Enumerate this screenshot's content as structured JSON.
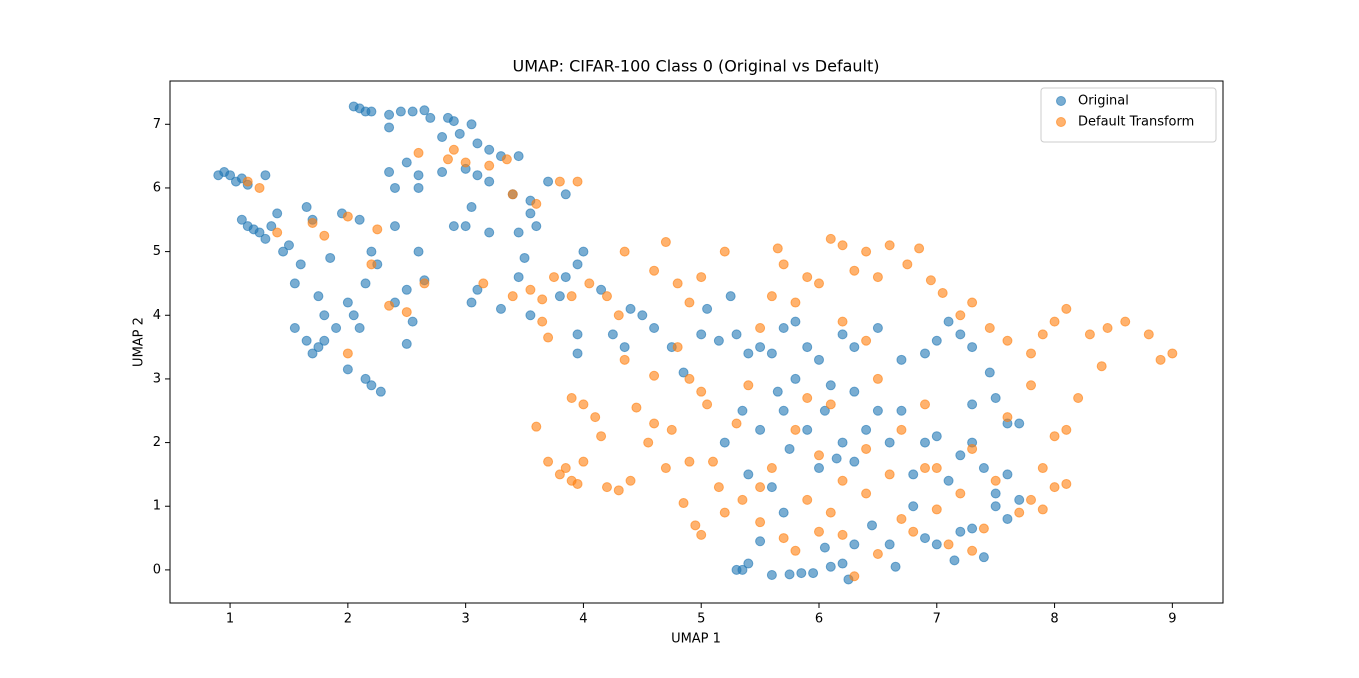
{
  "chart_data": {
    "type": "scatter",
    "title": "UMAP: CIFAR-100 Class 0 (Original vs Default)",
    "x_label": "UMAP 1",
    "y_label": "UMAP 2",
    "xlim": [
      0.49,
      9.43
    ],
    "ylim": [
      -0.52,
      7.68
    ],
    "xticks": [
      1,
      2,
      3,
      4,
      5,
      6,
      7,
      8,
      9
    ],
    "yticks": [
      0,
      1,
      2,
      3,
      4,
      5,
      6,
      7
    ],
    "legend": "upper right",
    "grid": false,
    "series": [
      {
        "name": "Original",
        "color": "#1f77b4",
        "x": [
          0.9,
          0.95,
          1.0,
          1.05,
          1.1,
          1.15,
          1.3,
          1.1,
          1.15,
          1.2,
          1.25,
          1.3,
          1.35,
          1.4,
          1.45,
          1.5,
          1.55,
          1.6,
          1.65,
          1.7,
          1.75,
          1.8,
          1.85,
          1.9,
          1.95,
          2.0,
          2.05,
          2.1,
          2.15,
          2.2,
          2.25,
          1.55,
          1.65,
          1.7,
          1.75,
          1.8,
          2.0,
          2.15,
          2.2,
          2.28,
          2.4,
          2.5,
          2.55,
          2.65,
          2.6,
          2.4,
          2.1,
          2.5,
          2.05,
          2.1,
          2.15,
          2.2,
          2.35,
          2.45,
          2.55,
          2.65,
          2.7,
          2.85,
          2.9,
          3.05,
          2.35,
          2.8,
          2.95,
          3.1,
          3.2,
          3.3,
          3.45,
          2.5,
          2.35,
          2.6,
          2.8,
          3.0,
          3.1,
          3.2,
          3.4,
          3.55,
          3.05,
          3.0,
          2.9,
          3.2,
          3.45,
          3.55,
          3.6,
          3.85,
          3.7,
          2.4,
          2.6,
          3.05,
          3.1,
          3.3,
          3.45,
          3.5,
          3.55,
          3.8,
          3.85,
          3.95,
          4.0,
          3.95,
          3.95,
          4.15,
          4.25,
          4.35,
          4.4,
          4.5,
          4.6,
          4.75,
          4.85,
          5.0,
          5.05,
          5.15,
          5.25,
          5.3,
          5.3,
          5.35,
          5.4,
          5.5,
          5.6,
          5.7,
          5.75,
          5.85,
          5.95,
          6.05,
          6.1,
          6.2,
          6.25,
          6.3,
          6.45,
          6.6,
          6.65,
          6.8,
          6.9,
          7.0,
          7.15,
          7.2,
          7.3,
          7.4,
          7.5,
          7.6,
          7.7,
          5.2,
          5.35,
          5.4,
          5.5,
          5.6,
          5.7,
          5.75,
          5.8,
          5.9,
          6.0,
          6.05,
          6.15,
          6.2,
          6.3,
          6.4,
          6.5,
          6.6,
          6.7,
          6.8,
          6.9,
          7.0,
          7.1,
          7.2,
          7.3,
          7.4,
          7.5,
          7.6,
          7.7,
          5.4,
          5.5,
          5.6,
          5.7,
          5.8,
          5.9,
          6.0,
          6.1,
          6.2,
          6.3,
          6.5,
          6.7,
          6.9,
          7.0,
          7.1,
          7.2,
          7.3,
          7.45,
          7.3,
          7.6,
          7.5,
          6.3,
          5.65
        ],
        "values": [
          6.2,
          6.25,
          6.2,
          6.1,
          6.15,
          6.05,
          6.2,
          5.5,
          5.4,
          5.35,
          5.3,
          5.2,
          5.4,
          5.6,
          5.0,
          5.1,
          4.5,
          4.8,
          5.7,
          5.5,
          4.3,
          4.0,
          4.9,
          3.8,
          5.6,
          4.2,
          4.0,
          3.8,
          4.5,
          5.0,
          4.8,
          3.8,
          3.6,
          3.4,
          3.5,
          3.6,
          3.15,
          3.0,
          2.9,
          2.8,
          4.2,
          4.4,
          3.9,
          4.55,
          5.0,
          5.4,
          5.5,
          3.55,
          7.28,
          7.25,
          7.2,
          7.2,
          7.15,
          7.2,
          7.2,
          7.22,
          7.1,
          7.1,
          7.05,
          7.0,
          6.95,
          6.8,
          6.85,
          6.7,
          6.6,
          6.5,
          6.5,
          6.4,
          6.25,
          6.2,
          6.25,
          6.3,
          6.2,
          6.1,
          5.9,
          5.8,
          5.7,
          5.4,
          5.4,
          5.3,
          5.3,
          5.6,
          5.4,
          5.9,
          6.1,
          6.0,
          6.0,
          4.2,
          4.4,
          4.1,
          4.6,
          4.9,
          4.0,
          4.3,
          4.6,
          4.8,
          5.0,
          3.7,
          3.4,
          4.4,
          3.7,
          3.5,
          4.1,
          4.0,
          3.8,
          3.5,
          3.1,
          3.7,
          4.1,
          3.6,
          4.3,
          3.7,
          0.0,
          0.0,
          0.1,
          0.45,
          -0.08,
          0.9,
          -0.07,
          -0.05,
          -0.05,
          0.35,
          0.05,
          0.1,
          -0.15,
          0.4,
          0.7,
          0.4,
          0.05,
          1.0,
          0.5,
          0.4,
          0.15,
          0.6,
          0.65,
          0.2,
          1.2,
          0.8,
          1.1,
          2.0,
          2.5,
          1.5,
          2.2,
          1.3,
          2.5,
          1.9,
          3.0,
          2.2,
          1.6,
          2.5,
          1.75,
          2.0,
          1.7,
          2.2,
          2.5,
          2.0,
          2.5,
          1.5,
          2.0,
          2.1,
          1.4,
          1.8,
          2.0,
          1.6,
          1.0,
          1.5,
          2.3,
          3.4,
          3.5,
          3.4,
          3.8,
          3.9,
          3.5,
          3.3,
          2.9,
          3.7,
          3.5,
          3.8,
          3.3,
          3.4,
          3.6,
          3.9,
          3.7,
          3.5,
          3.1,
          2.6,
          2.3,
          2.7,
          2.8,
          2.8
        ]
      },
      {
        "name": "Default Transform",
        "color": "#ff7f0e",
        "x": [
          1.25,
          1.15,
          1.4,
          2.0,
          1.8,
          2.25,
          2.2,
          1.7,
          2.0,
          2.35,
          2.5,
          2.65,
          2.6,
          2.85,
          2.9,
          3.0,
          3.2,
          3.35,
          3.4,
          3.6,
          3.8,
          3.95,
          3.15,
          3.4,
          3.55,
          3.65,
          3.75,
          3.65,
          3.7,
          3.9,
          4.05,
          4.2,
          4.3,
          4.35,
          4.6,
          4.7,
          4.8,
          4.9,
          5.0,
          5.2,
          3.6,
          3.7,
          3.8,
          3.85,
          3.9,
          3.95,
          4.0,
          3.9,
          4.0,
          4.1,
          4.15,
          4.2,
          4.3,
          4.4,
          4.45,
          4.55,
          4.6,
          4.7,
          4.75,
          4.85,
          4.9,
          4.95,
          5.0,
          5.05,
          5.1,
          5.15,
          4.8,
          4.9,
          5.0,
          4.6,
          4.35,
          5.2,
          5.35,
          5.5,
          5.6,
          5.7,
          5.8,
          5.9,
          6.0,
          6.1,
          6.2,
          6.3,
          6.4,
          6.5,
          6.6,
          6.7,
          6.8,
          6.9,
          7.0,
          7.1,
          7.2,
          7.3,
          7.4,
          7.5,
          7.7,
          7.8,
          7.9,
          8.0,
          8.1,
          5.3,
          5.4,
          5.5,
          5.6,
          5.7,
          5.8,
          5.9,
          5.65,
          6.1,
          6.2,
          6.3,
          6.4,
          6.5,
          6.6,
          6.75,
          6.85,
          6.95,
          7.05,
          7.2,
          7.3,
          7.45,
          7.6,
          7.8,
          7.9,
          8.0,
          8.1,
          8.3,
          8.45,
          8.6,
          8.8,
          8.9,
          9.0,
          8.4,
          8.2,
          8.0,
          7.9,
          8.1,
          7.8,
          7.6,
          6.0,
          6.2,
          6.4,
          6.5,
          6.7,
          6.9,
          7.0,
          7.3,
          5.8,
          6.0,
          6.2,
          6.4,
          6.1,
          5.9,
          5.5
        ],
        "values": [
          6.0,
          6.1,
          5.3,
          5.55,
          5.25,
          5.35,
          4.8,
          5.45,
          3.4,
          4.15,
          4.05,
          4.5,
          6.55,
          6.45,
          6.6,
          6.4,
          6.35,
          6.45,
          5.9,
          5.75,
          6.1,
          6.1,
          4.5,
          4.3,
          4.4,
          4.25,
          4.6,
          3.9,
          3.65,
          4.3,
          4.5,
          4.3,
          4.0,
          5.0,
          4.7,
          5.15,
          4.5,
          4.2,
          4.6,
          5.0,
          2.25,
          1.7,
          1.5,
          1.6,
          1.4,
          1.35,
          1.7,
          2.7,
          2.6,
          2.4,
          2.1,
          1.3,
          1.25,
          1.4,
          2.55,
          2.0,
          2.3,
          1.6,
          2.2,
          1.05,
          1.7,
          0.7,
          0.55,
          2.6,
          1.7,
          1.3,
          3.5,
          3.0,
          2.8,
          3.05,
          3.3,
          0.9,
          1.1,
          0.75,
          1.6,
          0.5,
          0.3,
          1.1,
          0.6,
          0.9,
          0.55,
          -0.1,
          1.2,
          0.25,
          1.5,
          0.8,
          0.6,
          1.6,
          0.95,
          0.4,
          1.2,
          0.3,
          0.65,
          1.4,
          0.9,
          1.1,
          0.95,
          1.3,
          1.35,
          2.3,
          2.9,
          3.8,
          4.3,
          4.8,
          4.2,
          4.6,
          5.05,
          5.2,
          5.1,
          4.7,
          5.0,
          4.6,
          5.1,
          4.8,
          5.05,
          4.55,
          4.35,
          4.0,
          4.2,
          3.8,
          3.6,
          3.4,
          3.7,
          3.9,
          4.1,
          3.7,
          3.8,
          3.9,
          3.7,
          3.3,
          3.4,
          3.2,
          2.7,
          2.1,
          1.6,
          2.2,
          2.9,
          2.4,
          4.5,
          3.9,
          3.6,
          3.0,
          2.2,
          2.6,
          1.6,
          1.9,
          2.2,
          1.8,
          1.4,
          1.9,
          2.6,
          2.7,
          1.3
        ]
      }
    ]
  }
}
